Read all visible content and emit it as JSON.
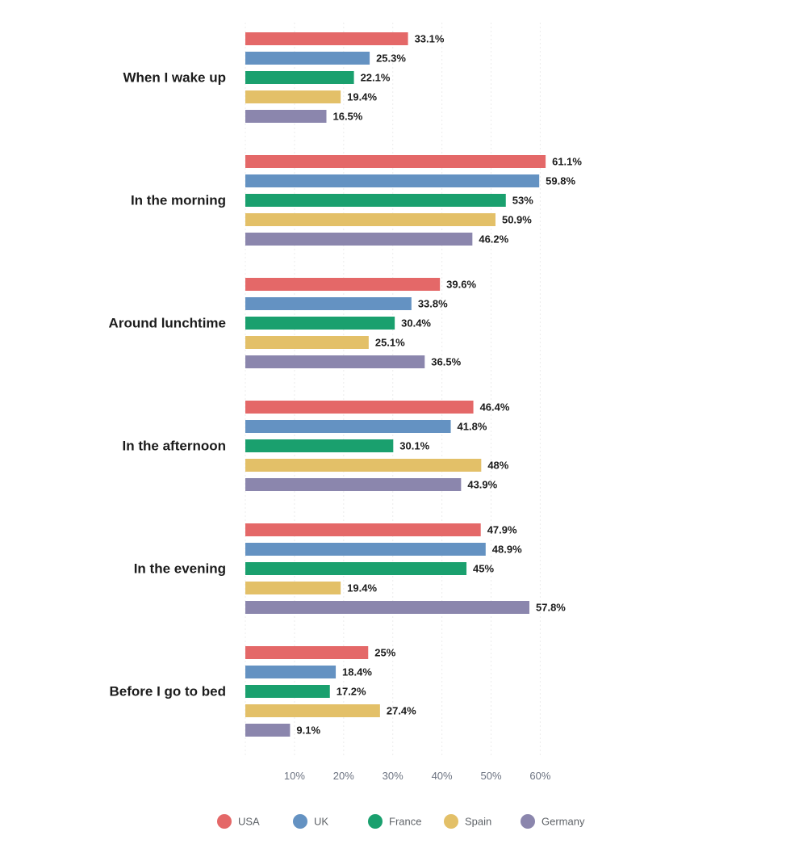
{
  "chart_data": {
    "type": "bar",
    "orientation": "horizontal",
    "title": "",
    "xlabel": "",
    "ylabel": "",
    "categories": [
      "When I wake up",
      "In the morning",
      "Around lunchtime",
      "In the afternoon",
      "In the evening",
      "Before I go to bed"
    ],
    "series": [
      {
        "name": "USA",
        "color": "#e46868",
        "values": [
          33.1,
          61.1,
          39.6,
          46.4,
          47.9,
          25
        ]
      },
      {
        "name": "UK",
        "color": "#6492c2",
        "values": [
          25.3,
          59.8,
          33.8,
          41.8,
          48.9,
          18.4
        ]
      },
      {
        "name": "France",
        "color": "#1aa06e",
        "values": [
          22.1,
          53,
          30.4,
          30.1,
          45,
          17.2
        ]
      },
      {
        "name": "Spain",
        "color": "#e3c068",
        "values": [
          19.4,
          50.9,
          25.1,
          48,
          19.4,
          27.4
        ]
      },
      {
        "name": "Germany",
        "color": "#8b86ad",
        "values": [
          16.5,
          46.2,
          36.5,
          43.9,
          57.8,
          9.1
        ]
      }
    ],
    "value_labels": [
      [
        "33.1%",
        "61.1%",
        "39.6%",
        "46.4%",
        "47.9%",
        "25%"
      ],
      [
        "25.3%",
        "59.8%",
        "33.8%",
        "41.8%",
        "48.9%",
        "18.4%"
      ],
      [
        "22.1%",
        "53%",
        "30.4%",
        "30.1%",
        "45%",
        "17.2%"
      ],
      [
        "19.4%",
        "50.9%",
        "25.1%",
        "48%",
        "19.4%",
        "27.4%"
      ],
      [
        "16.5%",
        "46.2%",
        "36.5%",
        "43.9%",
        "57.8%",
        "9.1%"
      ]
    ],
    "x_ticks": [
      10,
      20,
      30,
      40,
      50,
      60
    ],
    "x_tick_labels": [
      "10%",
      "20%",
      "30%",
      "40%",
      "50%",
      "60%"
    ],
    "xlim": [
      0,
      65
    ],
    "grid": true,
    "legend_position": "bottom-center"
  }
}
